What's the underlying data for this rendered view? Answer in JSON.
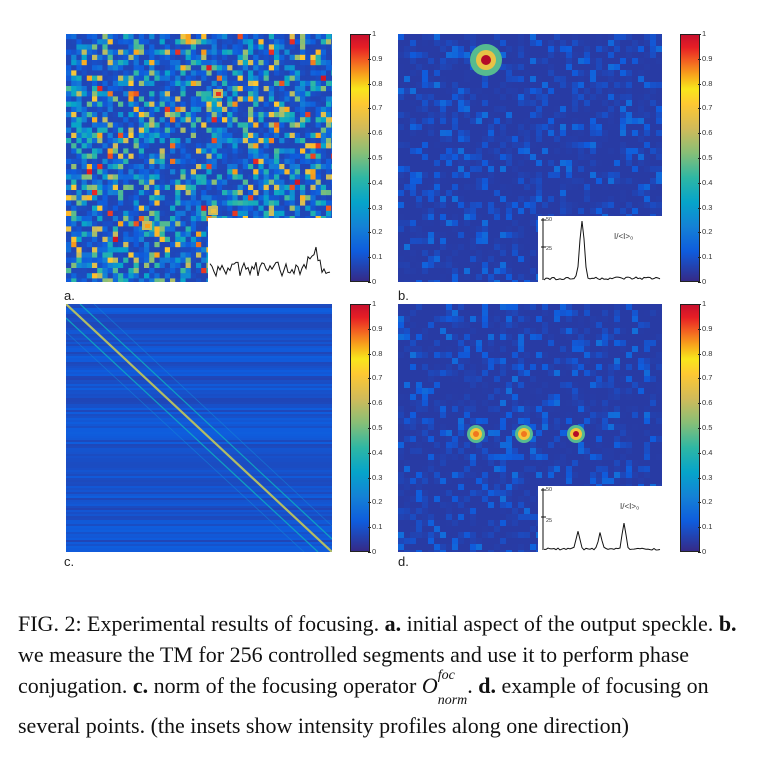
{
  "panels": {
    "a": {
      "label": "a."
    },
    "b": {
      "label": "b.",
      "inset_label": "I/<I>₀",
      "inset_ticks": [
        "50",
        "25"
      ]
    },
    "c": {
      "label": "c."
    },
    "d": {
      "label": "d.",
      "inset_label": "I/<I>₀",
      "inset_ticks": [
        "50",
        "25"
      ]
    }
  },
  "colorbar_ticks": [
    "1",
    "0.9",
    "0.8",
    "0.7",
    "0.6",
    "0.5",
    "0.4",
    "0.3",
    "0.2",
    "0.1",
    "0"
  ],
  "caption": {
    "fig": "FIG. 2: Experimental results of focusing. ",
    "a_key": "a.",
    "a_text": " initial aspect of the output speckle. ",
    "b_key": "b.",
    "b_text": " we measure the TM for 256 controlled segments and use it to perform phase conjugation. ",
    "c_key": "c.",
    "c_text": " norm of the focusing operator ",
    "op_base": "O",
    "op_sup": "foc",
    "op_sub": "norm",
    "op_after": ". ",
    "d_key": "d.",
    "d_text": " example of focusing on several points. (the insets show intensity profiles along one direction)"
  },
  "colors": {
    "background": "#2b2d8f",
    "peak": "#c8102e",
    "speckle": "#3ec1e0"
  }
}
